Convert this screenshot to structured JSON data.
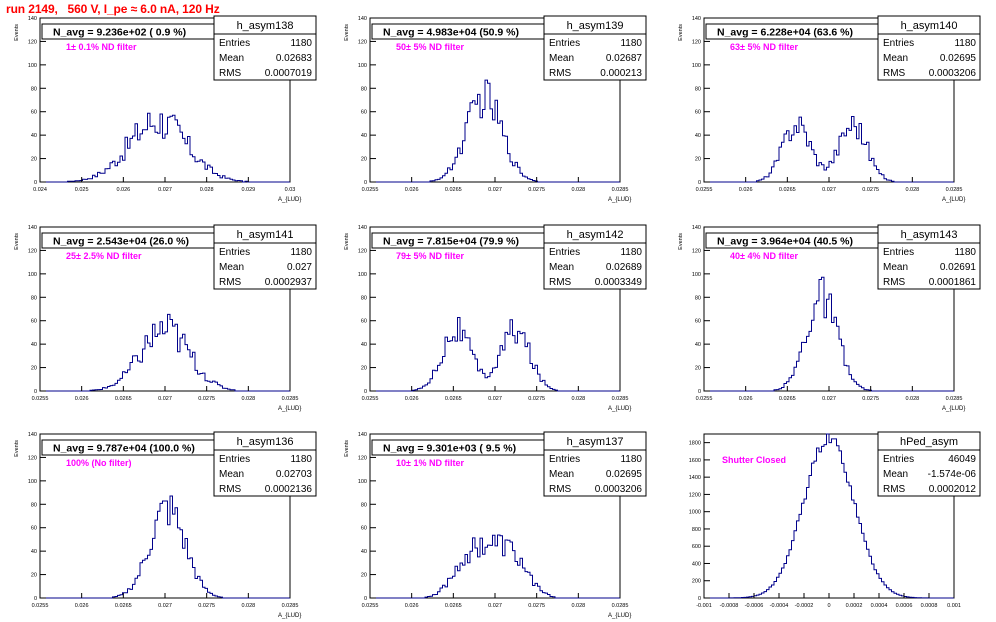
{
  "title": "run 2149,   560 V, I_pe ≈ 6.0 nA, 120 Hz",
  "colors": {
    "title": "#ff0000",
    "annotation": "#ff00ff",
    "histogram": "#00008b"
  },
  "chart_data": [
    {
      "type": "histogram",
      "name": "h_asym138",
      "ylabel": "Events",
      "xlabel": "A_{LUD}",
      "xlim": [
        0.024,
        0.03
      ],
      "xticks": [
        "0.024",
        "0.025",
        "0.026",
        "0.027",
        "0.028",
        "0.029",
        "0.03"
      ],
      "ylim": [
        0,
        140
      ],
      "yticks": [
        "0",
        "20",
        "40",
        "60",
        "80",
        "100",
        "120",
        "140"
      ],
      "header": "N_avg = 9.236e+02 ( 0.9 %)",
      "annotation": "1± 0.1% ND filter",
      "stats": [
        [
          "Entries",
          "1180"
        ],
        [
          "Mean",
          "0.02683"
        ],
        [
          "RMS",
          "0.0007019"
        ]
      ],
      "mean": 0.02683,
      "rms": 0.0007019,
      "peak": 52,
      "shape": "rough"
    },
    {
      "type": "histogram",
      "name": "h_asym139",
      "ylabel": "Events",
      "xlabel": "A_{LUD}",
      "xlim": [
        0.0255,
        0.0285
      ],
      "xticks": [
        "0.0255",
        "0.026",
        "0.0265",
        "0.027",
        "0.0275",
        "0.028",
        "0.0285"
      ],
      "ylim": [
        0,
        140
      ],
      "yticks": [
        "0",
        "20",
        "40",
        "60",
        "80",
        "100",
        "120",
        "140"
      ],
      "header": "N_avg = 4.983e+04 (50.9 %)",
      "annotation": "50± 5% ND filter",
      "stats": [
        [
          "Entries",
          "1180"
        ],
        [
          "Mean",
          "0.02687"
        ],
        [
          "RMS",
          "0.000213"
        ]
      ],
      "mean": 0.02687,
      "rms": 0.000213,
      "peak": 72,
      "shape": "single"
    },
    {
      "type": "histogram",
      "name": "h_asym140",
      "ylabel": "Events",
      "xlabel": "A_{LUD}",
      "xlim": [
        0.0255,
        0.0285
      ],
      "xticks": [
        "0.0255",
        "0.026",
        "0.0265",
        "0.027",
        "0.0275",
        "0.028",
        "0.0285"
      ],
      "ylim": [
        0,
        140
      ],
      "yticks": [
        "0",
        "20",
        "40",
        "60",
        "80",
        "100",
        "120",
        "140"
      ],
      "header": "N_avg = 6.228e+04 (63.6 %)",
      "annotation": "63± 5% ND filter",
      "stats": [
        [
          "Entries",
          "1180"
        ],
        [
          "Mean",
          "0.02695"
        ],
        [
          "RMS",
          "0.0003206"
        ]
      ],
      "mean": 0.02695,
      "rms": 0.0003206,
      "peak": 50,
      "shape": "double"
    },
    {
      "type": "histogram",
      "name": "h_asym141",
      "ylabel": "Events",
      "xlabel": "A_{LUD}",
      "xlim": [
        0.0255,
        0.0285
      ],
      "xticks": [
        "0.0255",
        "0.026",
        "0.0265",
        "0.027",
        "0.0275",
        "0.028",
        "0.0285"
      ],
      "ylim": [
        0,
        140
      ],
      "yticks": [
        "0",
        "20",
        "40",
        "60",
        "80",
        "100",
        "120",
        "140"
      ],
      "header": "N_avg = 2.543e+04 (26.0 %)",
      "annotation": "25± 2.5% ND filter",
      "stats": [
        [
          "Entries",
          "1180"
        ],
        [
          "Mean",
          "0.027"
        ],
        [
          "RMS",
          "0.0002937"
        ]
      ],
      "mean": 0.027,
      "rms": 0.0002937,
      "peak": 52,
      "shape": "rough"
    },
    {
      "type": "histogram",
      "name": "h_asym142",
      "ylabel": "Events",
      "xlabel": "A_{LUD}",
      "xlim": [
        0.0255,
        0.0285
      ],
      "xticks": [
        "0.0255",
        "0.026",
        "0.0265",
        "0.027",
        "0.0275",
        "0.028",
        "0.0285"
      ],
      "ylim": [
        0,
        140
      ],
      "yticks": [
        "0",
        "20",
        "40",
        "60",
        "80",
        "100",
        "120",
        "140"
      ],
      "header": "N_avg = 7.815e+04 (79.9 %)",
      "annotation": "79± 5% ND filter",
      "stats": [
        [
          "Entries",
          "1180"
        ],
        [
          "Mean",
          "0.02689"
        ],
        [
          "RMS",
          "0.0003349"
        ]
      ],
      "mean": 0.02689,
      "rms": 0.0003349,
      "peak": 52,
      "shape": "double"
    },
    {
      "type": "histogram",
      "name": "h_asym143",
      "ylabel": "Events",
      "xlabel": "A_{LUD}",
      "xlim": [
        0.0255,
        0.0285
      ],
      "xticks": [
        "0.0255",
        "0.026",
        "0.0265",
        "0.027",
        "0.0275",
        "0.028",
        "0.0285"
      ],
      "ylim": [
        0,
        140
      ],
      "yticks": [
        "0",
        "20",
        "40",
        "60",
        "80",
        "100",
        "120",
        "140"
      ],
      "header": "N_avg = 3.964e+04 (40.5 %)",
      "annotation": "40± 4% ND filter",
      "stats": [
        [
          "Entries",
          "1180"
        ],
        [
          "Mean",
          "0.02691"
        ],
        [
          "RMS",
          "0.0001861"
        ]
      ],
      "mean": 0.02691,
      "rms": 0.0001861,
      "peak": 80,
      "shape": "single"
    },
    {
      "type": "histogram",
      "name": "h_asym136",
      "ylabel": "Events",
      "xlabel": "A_{LUD}",
      "xlim": [
        0.0255,
        0.0285
      ],
      "xticks": [
        "0.0255",
        "0.026",
        "0.0265",
        "0.027",
        "0.0275",
        "0.028",
        "0.0285"
      ],
      "ylim": [
        0,
        140
      ],
      "yticks": [
        "0",
        "20",
        "40",
        "60",
        "80",
        "100",
        "120",
        "140"
      ],
      "header": "N_avg = 9.787e+04 (100.0 %)",
      "annotation": "100% (No filter)",
      "stats": [
        [
          "Entries",
          "1180"
        ],
        [
          "Mean",
          "0.02703"
        ],
        [
          "RMS",
          "0.0002136"
        ]
      ],
      "mean": 0.02703,
      "rms": 0.0002136,
      "peak": 76,
      "shape": "single"
    },
    {
      "type": "histogram",
      "name": "h_asym137",
      "ylabel": "Events",
      "xlabel": "A_{LUD}",
      "xlim": [
        0.0255,
        0.0285
      ],
      "xticks": [
        "0.0255",
        "0.026",
        "0.0265",
        "0.027",
        "0.0275",
        "0.028",
        "0.0285"
      ],
      "ylim": [
        0,
        140
      ],
      "yticks": [
        "0",
        "20",
        "40",
        "60",
        "80",
        "100",
        "120",
        "140"
      ],
      "header": "N_avg = 9.301e+03 ( 9.5 %)",
      "annotation": "10± 1% ND filter",
      "stats": [
        [
          "Entries",
          "1180"
        ],
        [
          "Mean",
          "0.02695"
        ],
        [
          "RMS",
          "0.0003206"
        ]
      ],
      "mean": 0.02695,
      "rms": 0.0003206,
      "peak": 46,
      "shape": "flat"
    },
    {
      "type": "histogram",
      "name": "hPed_asym",
      "ylabel": "",
      "xlabel": "",
      "xlim": [
        -0.001,
        0.001
      ],
      "xticks": [
        "-0.001",
        "-0.0008",
        "-0.0006",
        "-0.0004",
        "-0.0002",
        "0",
        "0.0002",
        "0.0004",
        "0.0006",
        "0.0008",
        "0.001"
      ],
      "ylim": [
        0,
        1900
      ],
      "yticks": [
        "0",
        "200",
        "400",
        "600",
        "800",
        "1000",
        "1200",
        "1400",
        "1600",
        "1800"
      ],
      "header": "",
      "annotation": "Shutter Closed",
      "stats": [
        [
          "Entries",
          "46049"
        ],
        [
          "Mean",
          "-1.574e-06"
        ],
        [
          "RMS",
          "0.0002012"
        ]
      ],
      "mean": -1.574e-06,
      "rms": 0.0002012,
      "peak": 1850,
      "shape": "smooth"
    }
  ]
}
